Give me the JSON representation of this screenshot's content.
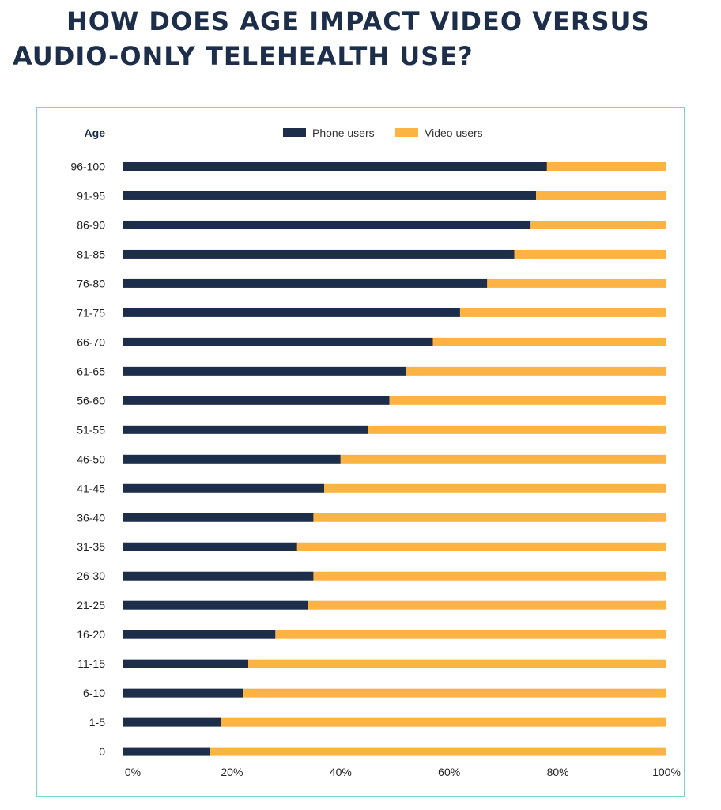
{
  "title_lines": [
    "HOW DOES AGE IMPACT VIDEO VERSUS",
    "AUDIO-ONLY TELEHEALTH USE?"
  ],
  "colors": {
    "phone": "#1c2e4a",
    "video": "#fbb444",
    "title": "#1c2e4a",
    "frame": "#7fd3cf"
  },
  "chart_data": {
    "type": "bar",
    "orientation": "horizontal",
    "stacked": true,
    "percent_scale": true,
    "category_header": "Age",
    "categories": [
      "96-100",
      "91-95",
      "86-90",
      "81-85",
      "76-80",
      "71-75",
      "66-70",
      "61-65",
      "56-60",
      "51-55",
      "46-50",
      "41-45",
      "36-40",
      "31-35",
      "26-30",
      "21-25",
      "16-20",
      "11-15",
      "6-10",
      "1-5",
      "0"
    ],
    "series": [
      {
        "name": "Phone users",
        "color": "#1c2e4a",
        "values": [
          78,
          76,
          75,
          72,
          67,
          62,
          57,
          52,
          49,
          45,
          40,
          37,
          35,
          32,
          35,
          34,
          28,
          23,
          22,
          18,
          16
        ]
      },
      {
        "name": "Video users",
        "color": "#fbb444",
        "values": [
          22,
          24,
          25,
          28,
          33,
          38,
          43,
          48,
          51,
          55,
          60,
          63,
          65,
          68,
          65,
          66,
          72,
          77,
          78,
          82,
          84
        ]
      }
    ],
    "xticks": [
      "0%",
      "20%",
      "40%",
      "60%",
      "80%",
      "100%"
    ],
    "xlim": [
      0,
      100
    ],
    "legend_position": "top"
  }
}
